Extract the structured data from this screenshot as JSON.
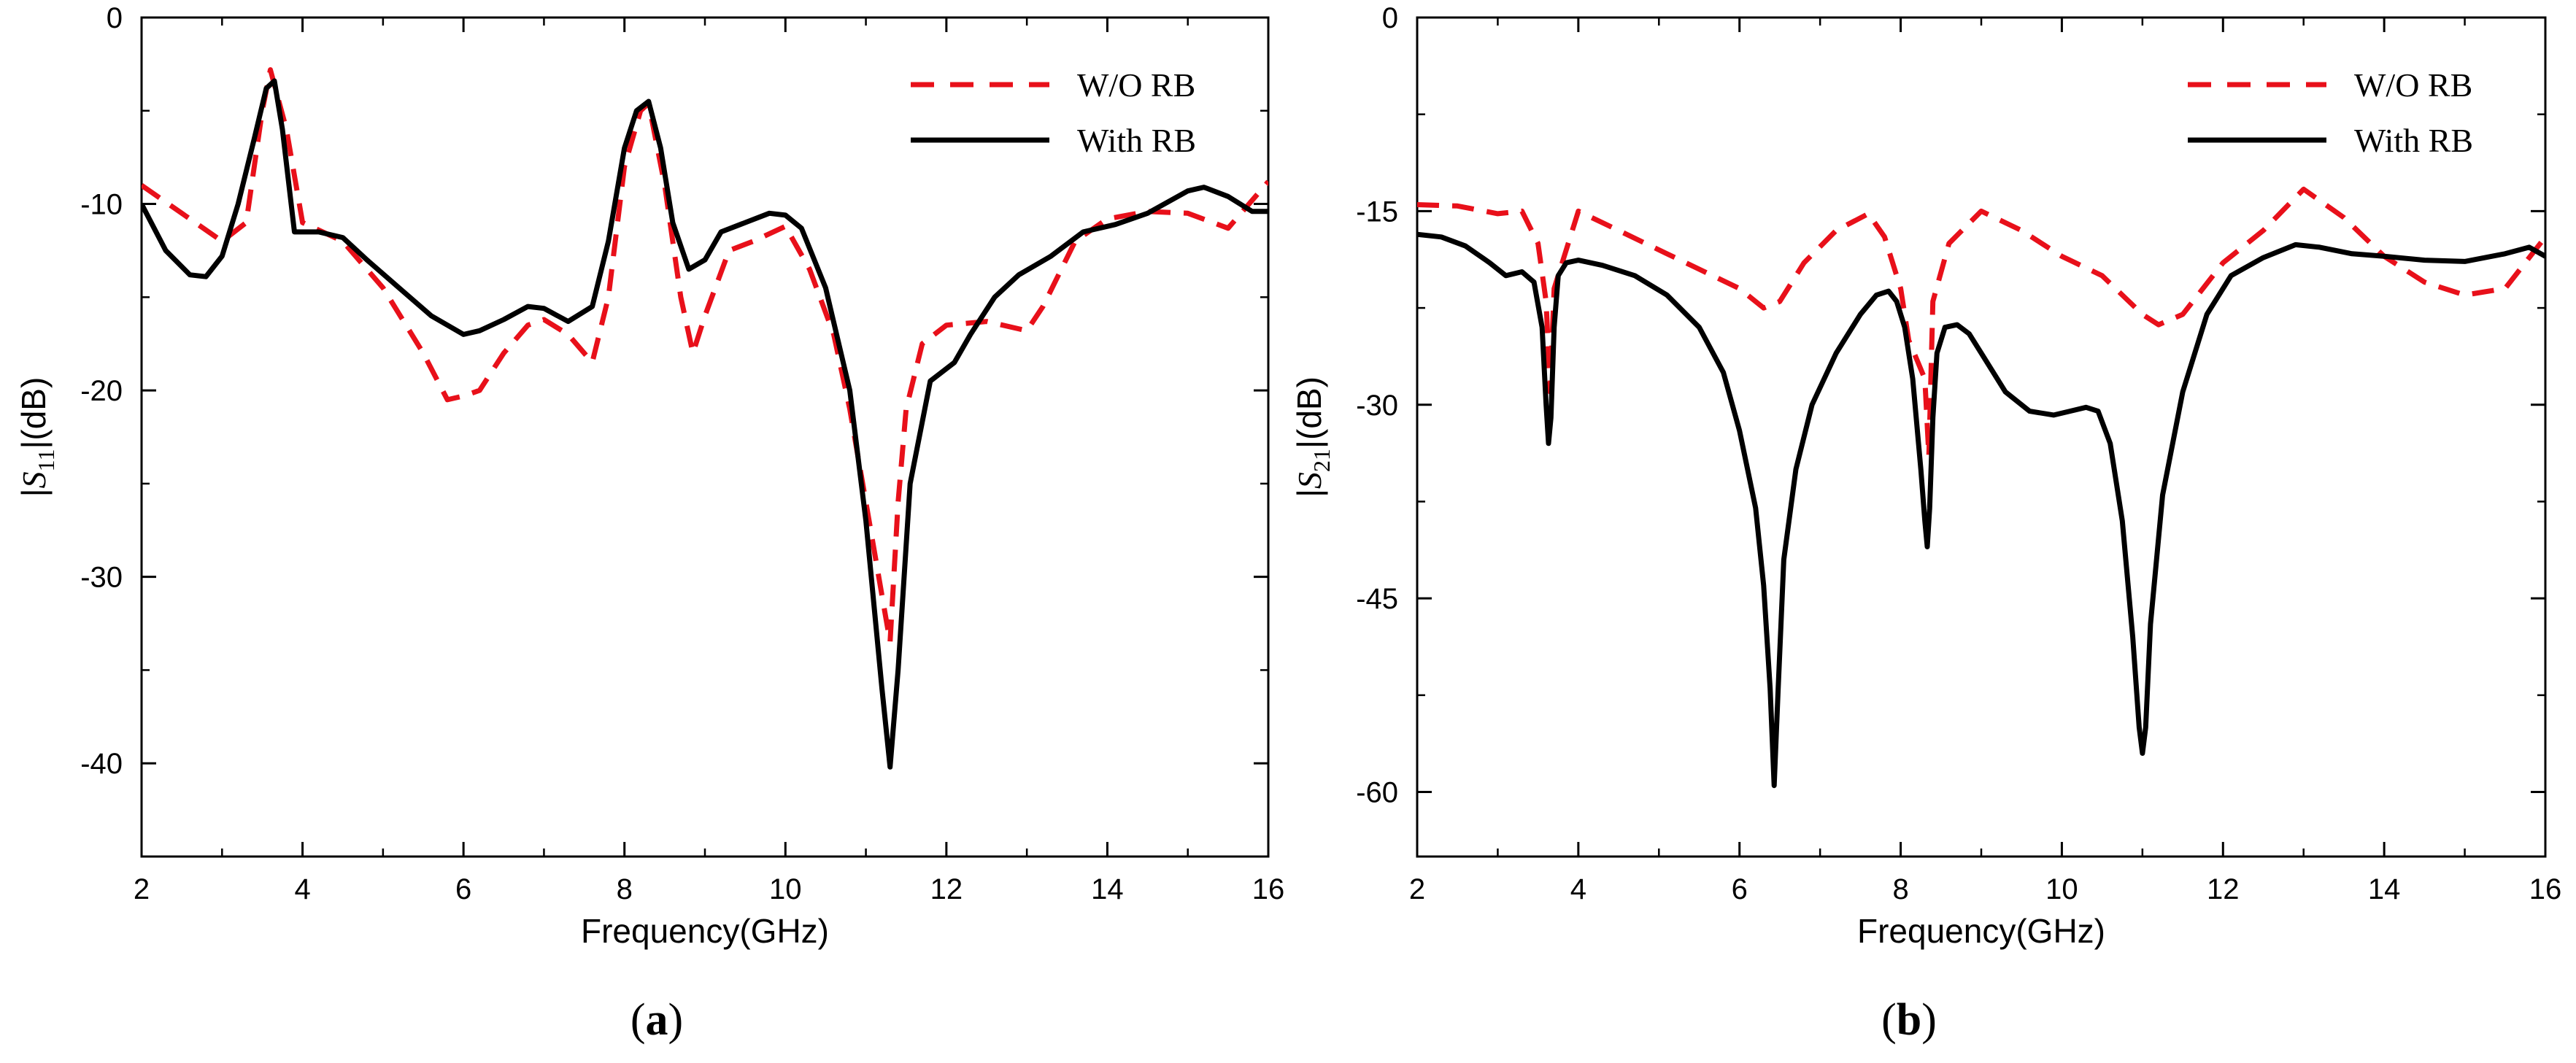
{
  "chart_data": [
    {
      "type": "line",
      "panel_label": "a",
      "caption_open": "(",
      "caption_close": ")",
      "xlabel": "Frequency(GHz)",
      "ylabel_prefix": "|",
      "ylabel_symbol": "S",
      "ylabel_subscript": "11",
      "ylabel_suffix": "|(dB)",
      "xlim": [
        2,
        16
      ],
      "ylim": [
        -45,
        0
      ],
      "xticks": [
        2,
        4,
        6,
        8,
        10,
        12,
        14,
        16
      ],
      "yticks": [
        0,
        -10,
        -20,
        -30,
        -40
      ],
      "grid": false,
      "legend_position": "top-right",
      "series": [
        {
          "name": "W/O RB",
          "color": "#e8101a",
          "style": "dashed",
          "x": [
            2,
            2.5,
            3,
            3.3,
            3.5,
            3.6,
            3.8,
            4,
            4.5,
            5,
            5.5,
            5.8,
            6,
            6.2,
            6.5,
            6.8,
            7,
            7.3,
            7.6,
            7.8,
            8,
            8.2,
            8.3,
            8.5,
            8.7,
            8.85,
            9,
            9.3,
            9.6,
            10,
            10.3,
            10.6,
            10.8,
            11,
            11.2,
            11.3,
            11.4,
            11.5,
            11.7,
            12,
            12.5,
            13,
            13.2,
            13.6,
            14,
            14.5,
            15,
            15.5,
            16
          ],
          "y": [
            -9,
            -10.5,
            -12,
            -11,
            -5,
            -2.8,
            -6,
            -11,
            -12,
            -14.5,
            -18,
            -20.5,
            -20.3,
            -20,
            -18,
            -16.5,
            -16.2,
            -17,
            -18.5,
            -15,
            -8,
            -5,
            -4.6,
            -9,
            -15,
            -18,
            -16,
            -12.5,
            -12,
            -11.2,
            -13.5,
            -17,
            -21,
            -26,
            -31,
            -33.5,
            -26,
            -21,
            -17.5,
            -16.5,
            -16.3,
            -16.8,
            -15.5,
            -12,
            -10.8,
            -10.4,
            -10.5,
            -11.3,
            -8.8
          ]
        },
        {
          "name": "With RB",
          "color": "#000000",
          "style": "solid",
          "x": [
            2,
            2.3,
            2.6,
            2.8,
            3.0,
            3.2,
            3.4,
            3.55,
            3.65,
            3.75,
            3.9,
            4.2,
            4.5,
            4.8,
            5.2,
            5.6,
            6.0,
            6.2,
            6.5,
            6.8,
            7.0,
            7.3,
            7.6,
            7.8,
            8.0,
            8.15,
            8.3,
            8.45,
            8.6,
            8.8,
            9.0,
            9.2,
            9.5,
            9.8,
            10.0,
            10.2,
            10.5,
            10.8,
            11.0,
            11.2,
            11.3,
            11.4,
            11.55,
            11.8,
            12.1,
            12.3,
            12.6,
            12.9,
            13.3,
            13.7,
            14.1,
            14.5,
            15.0,
            15.2,
            15.5,
            15.8,
            16
          ],
          "y": [
            -10,
            -12.5,
            -13.8,
            -13.9,
            -12.8,
            -10,
            -6.5,
            -3.8,
            -3.4,
            -6,
            -11.5,
            -11.5,
            -11.8,
            -13,
            -14.5,
            -16,
            -17,
            -16.8,
            -16.2,
            -15.5,
            -15.6,
            -16.3,
            -15.5,
            -12,
            -7,
            -5,
            -4.5,
            -7,
            -11,
            -13.5,
            -13,
            -11.5,
            -11,
            -10.5,
            -10.6,
            -11.3,
            -14.5,
            -20,
            -27,
            -36,
            -40.2,
            -35,
            -25,
            -19.5,
            -18.5,
            -17,
            -15,
            -13.8,
            -12.8,
            -11.5,
            -11.1,
            -10.5,
            -9.3,
            -9.1,
            -9.6,
            -10.4,
            -10.4
          ]
        }
      ]
    },
    {
      "type": "line",
      "panel_label": "b",
      "caption_open": "(",
      "caption_close": ")",
      "xlabel": "Frequency(GHz)",
      "ylabel_prefix": "|",
      "ylabel_symbol": "S",
      "ylabel_subscript": "21",
      "ylabel_suffix": "|(dB)",
      "xlim": [
        2,
        16
      ],
      "ylim": [
        -65,
        0
      ],
      "xticks": [
        2,
        4,
        6,
        8,
        10,
        12,
        14,
        16
      ],
      "yticks": [
        0,
        -15,
        -30,
        -45,
        -60
      ],
      "grid": false,
      "legend_position": "top-right",
      "series": [
        {
          "name": "W/O RB",
          "color": "#e8101a",
          "style": "dashed",
          "x": [
            2,
            2.5,
            3,
            3.3,
            3.5,
            3.6,
            3.65,
            3.7,
            4,
            4.5,
            5,
            5.5,
            6,
            6.3,
            6.5,
            6.8,
            7.2,
            7.6,
            7.8,
            8.0,
            8.1,
            8.2,
            8.3,
            8.35,
            8.4,
            8.6,
            9,
            9.5,
            10,
            10.5,
            11,
            11.2,
            11.5,
            12,
            12.5,
            13,
            13.5,
            14,
            14.5,
            15,
            15.5,
            16
          ],
          "y": [
            -14.5,
            -14.6,
            -15.2,
            -15,
            -17.5,
            -22,
            -29,
            -21,
            -15,
            -16.5,
            -18,
            -19.5,
            -21,
            -22.5,
            -22,
            -19,
            -16.5,
            -15.2,
            -17,
            -21,
            -25,
            -26.5,
            -28,
            -34,
            -22,
            -17.5,
            -15,
            -16.5,
            -18.5,
            -20,
            -23,
            -23.8,
            -23,
            -19,
            -16.5,
            -13.3,
            -15.5,
            -18.5,
            -20.5,
            -21.5,
            -21,
            -17
          ]
        },
        {
          "name": "With RB",
          "color": "#000000",
          "style": "solid",
          "x": [
            2,
            2.3,
            2.6,
            2.9,
            3.1,
            3.3,
            3.45,
            3.55,
            3.6,
            3.63,
            3.66,
            3.7,
            3.75,
            3.85,
            4.0,
            4.3,
            4.7,
            5.1,
            5.5,
            5.8,
            6.0,
            6.2,
            6.3,
            6.38,
            6.43,
            6.48,
            6.55,
            6.7,
            6.9,
            7.2,
            7.5,
            7.7,
            7.85,
            7.95,
            8.05,
            8.15,
            8.25,
            8.3,
            8.33,
            8.36,
            8.4,
            8.45,
            8.55,
            8.7,
            8.85,
            9.0,
            9.3,
            9.6,
            9.9,
            10.1,
            10.3,
            10.45,
            10.6,
            10.75,
            10.88,
            10.96,
            11.0,
            11.04,
            11.1,
            11.25,
            11.5,
            11.8,
            12.1,
            12.5,
            12.9,
            13.2,
            13.6,
            14.0,
            14.5,
            15.0,
            15.5,
            15.8,
            16
          ],
          "y": [
            -16.8,
            -17,
            -17.7,
            -19,
            -20,
            -19.7,
            -20.5,
            -24,
            -30,
            -33,
            -31,
            -24,
            -20,
            -19,
            -18.8,
            -19.2,
            -20,
            -21.5,
            -24,
            -27.5,
            -32,
            -38,
            -44,
            -52,
            -59.5,
            -52,
            -42,
            -35,
            -30,
            -26,
            -23,
            -21.5,
            -21.2,
            -22,
            -24,
            -28,
            -35,
            -39,
            -41,
            -38,
            -31,
            -26,
            -24,
            -23.8,
            -24.5,
            -26,
            -29,
            -30.5,
            -30.8,
            -30.5,
            -30.2,
            -30.5,
            -33,
            -39,
            -48,
            -55,
            -57,
            -55,
            -47,
            -37,
            -29,
            -23,
            -20,
            -18.6,
            -17.6,
            -17.8,
            -18.3,
            -18.5,
            -18.8,
            -18.9,
            -18.3,
            -17.8,
            -18.5
          ]
        }
      ]
    }
  ]
}
